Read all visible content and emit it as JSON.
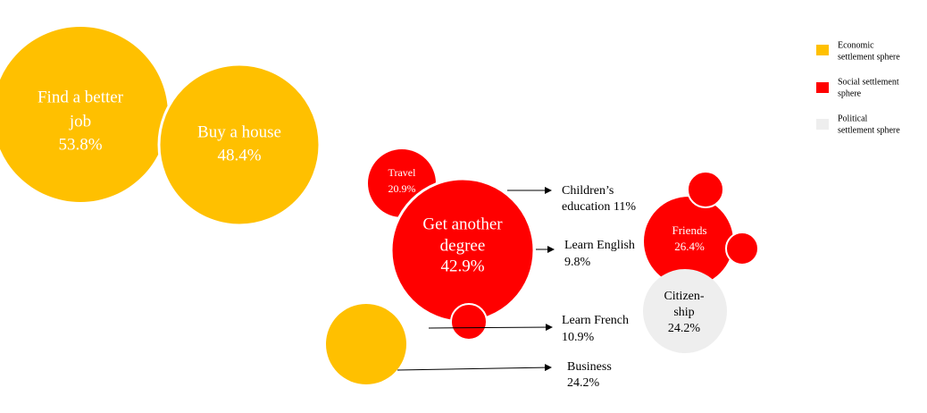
{
  "bubbles": [
    {
      "lines": [
        "Find a better",
        "job",
        "53.8%"
      ]
    },
    {
      "lines": [
        "Buy a house",
        "48.4%"
      ]
    },
    {
      "lines": [
        "Travel",
        "20.9%"
      ]
    },
    {
      "lines": [
        "Get another",
        "degree",
        "42.9%"
      ]
    },
    {
      "lines": [
        "Friends",
        "26.4%"
      ]
    },
    {
      "lines": [
        "Citizen-",
        "ship",
        "24.2%"
      ]
    }
  ],
  "callouts": [
    {
      "lines": [
        "Children’s",
        "education 11%"
      ]
    },
    {
      "lines": [
        "Learn English",
        "9.8%"
      ]
    },
    {
      "lines": [
        "Learn French",
        "10.9%"
      ]
    },
    {
      "lines": [
        "Business",
        "24.2%"
      ]
    }
  ],
  "legend": [
    {
      "lines": [
        "Economic",
        "settlement sphere"
      ]
    },
    {
      "lines": [
        "Social settlement",
        "sphere"
      ]
    },
    {
      "lines": [
        "Political",
        "settlement sphere"
      ]
    }
  ]
}
